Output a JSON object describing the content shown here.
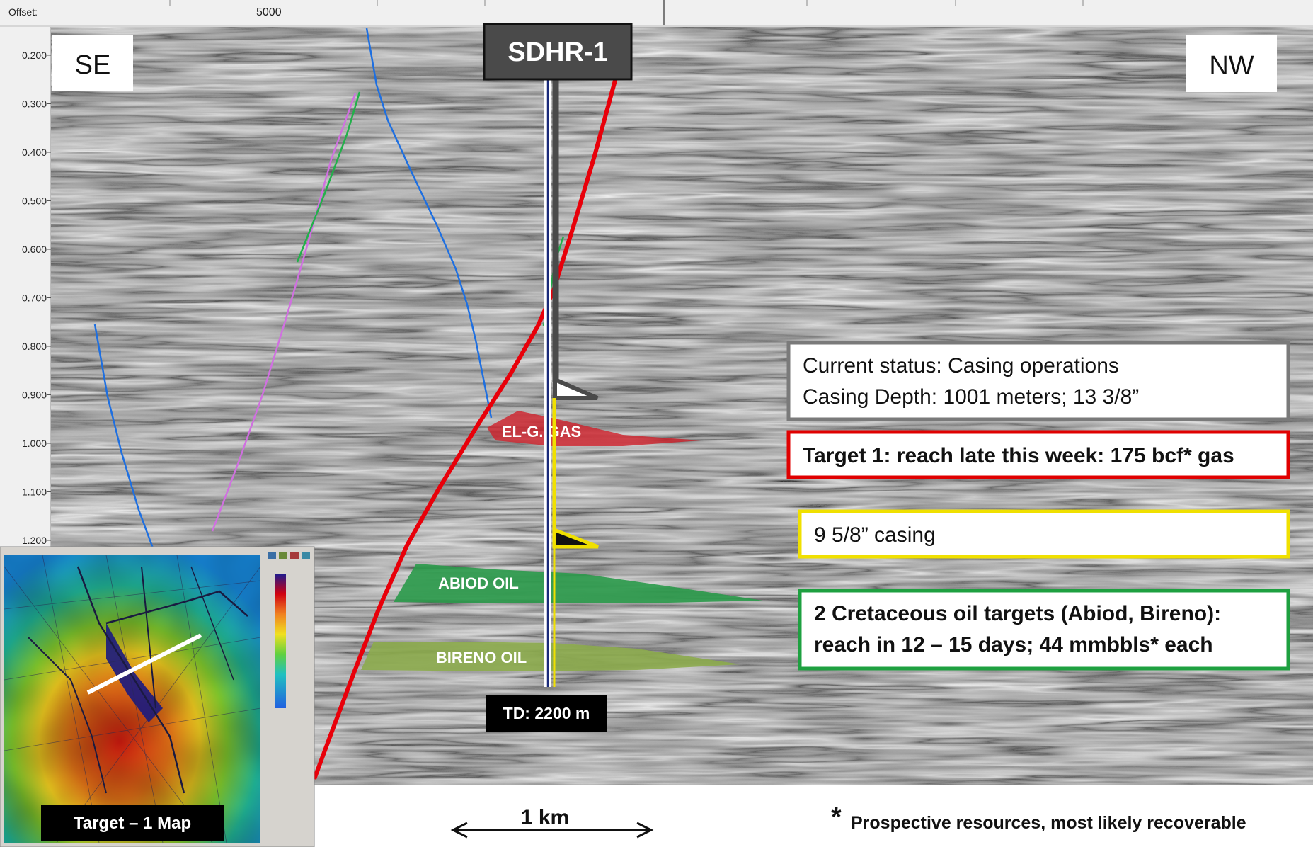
{
  "header": {
    "offset_label": "Offset:",
    "offset_value": "5000"
  },
  "time_axis": {
    "ticks": [
      "0.200",
      "0.300",
      "0.400",
      "0.500",
      "0.600",
      "0.700",
      "0.800",
      "0.900",
      "1.000",
      "1.100",
      "1.200"
    ]
  },
  "directions": {
    "left": "SE",
    "right": "NW"
  },
  "well": {
    "name": "SDHR-1",
    "td_label": "TD: 2200 m"
  },
  "reservoirs": {
    "gas": "EL-G. GAS",
    "abiod": "ABIOD OIL",
    "bireno": "BIRENO OIL"
  },
  "callouts": {
    "status_line1": "Current status: Casing operations",
    "status_line2": "Casing Depth: 1001 meters; 13 3/8”",
    "target1": "Target 1: reach late this week: 175 bcf* gas",
    "casing2": "9 5/8” casing",
    "oil_line1": "2 Cretaceous oil targets (Abiod, Bireno):",
    "oil_line2": "reach in 12 – 15 days;  44 mmbbls* each"
  },
  "scale_bar": {
    "label": "1 km"
  },
  "map_inset": {
    "caption": "Target – 1 Map"
  },
  "footnote": {
    "asterisk": "*",
    "text": "Prospective resources, most likely recoverable"
  },
  "colors": {
    "fault_main": "#e8000a",
    "fault_secondary": "#1e6fe0",
    "horizon_pink": "#d070e0",
    "horizon_green": "#22b04a",
    "gas_fill": "#d0202a",
    "oil_fill": "#2a9a4a",
    "well_casing_outer": "#4a4a4a",
    "well_casing_inner": "#f0e000",
    "status_border": "#7a7a7a",
    "target1_border": "#e00000",
    "casing2_border": "#f0e000",
    "oil_border": "#1ea040"
  }
}
